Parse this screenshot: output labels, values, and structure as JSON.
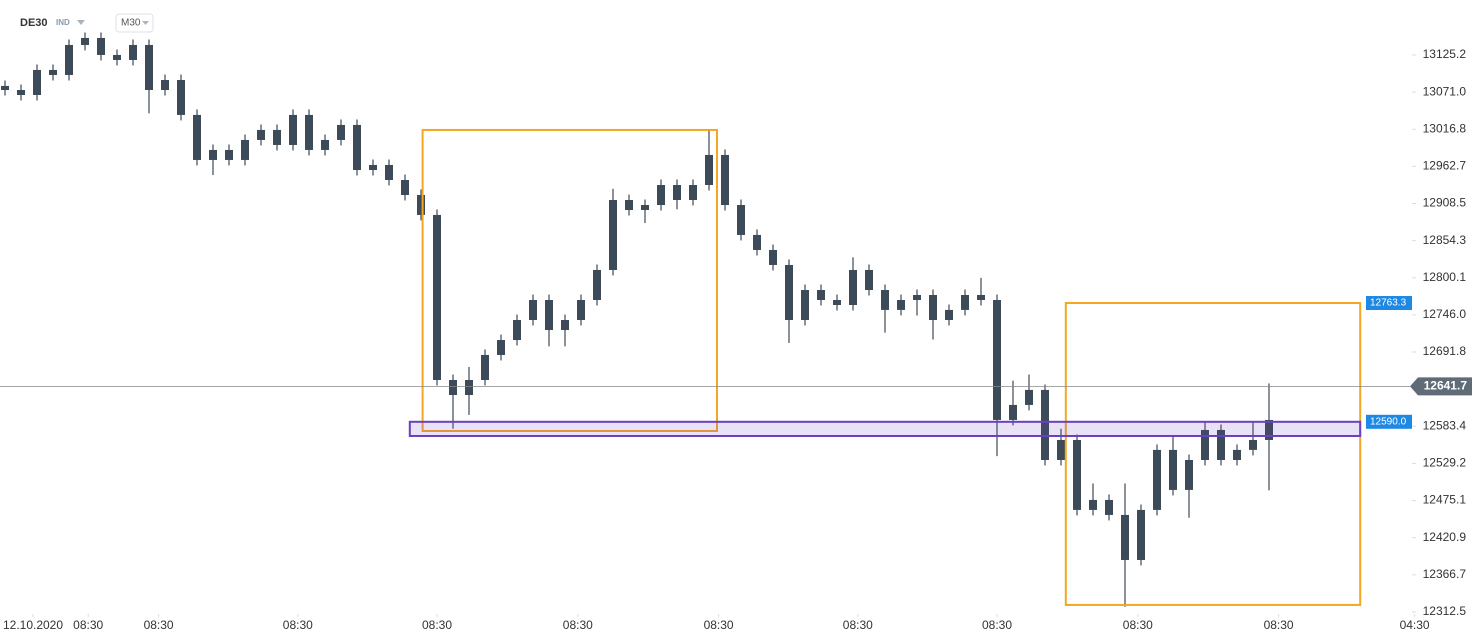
{
  "header": {
    "symbol": "DE30",
    "market": "IND",
    "interval": "M30"
  },
  "chart_data": {
    "type": "candlestick",
    "up_color": "#3d4a57",
    "down_color": "#3d4a57",
    "xlim": [
      -0.3125,
      87.8125
    ],
    "xticks": [
      {
        "value": 1.75,
        "label": "12.10.2020"
      },
      {
        "value": 5.2,
        "label": "08:30"
      },
      {
        "value": 9.6,
        "label": "08:30"
      },
      {
        "value": 18.3,
        "label": "08:30"
      },
      {
        "value": 27,
        "label": "08:30"
      },
      {
        "value": 35.8,
        "label": "08:30"
      },
      {
        "value": 44.6,
        "label": "08:30"
      },
      {
        "value": 53.3,
        "label": "08:30"
      },
      {
        "value": 62,
        "label": "08:30"
      },
      {
        "value": 70.8,
        "label": "08:30"
      },
      {
        "value": 79.6,
        "label": "08:30"
      },
      {
        "value": 88.1,
        "label": "04:30"
      }
    ],
    "ylim": [
      12312.5,
      13205.4
    ],
    "yticks": [
      13125.2,
      {
        "value": 13071.0,
        "label": "13071.0"
      },
      13016.8,
      12962.7,
      12908.5,
      12854.3,
      12800.1,
      {
        "value": 12746.0,
        "label": "12746.0"
      },
      12691.8,
      12583.4,
      12529.2,
      12475.1,
      12420.9,
      12366.7,
      12312.5
    ],
    "open": [
      13080.0,
      13074.1,
      13066.8,
      13103.3,
      13096.0,
      13139.8,
      13150.0,
      13125.2,
      13117.9,
      13139.8,
      13074.1,
      13088.7,
      13037.7,
      12972.0,
      12986.6,
      12972.0,
      13001.2,
      13015.8,
      12993.9,
      13037.7,
      12986.6,
      13001.2,
      13023.1,
      12957.4,
      12964.7,
      12942.8,
      12920.9,
      12891.8,
      12651.0,
      12629.1,
      12651.0,
      12687.5,
      12709.3,
      12738.5,
      12767.7,
      12723.9,
      12738.5,
      12767.7,
      12811.5,
      12913.6,
      12899.0,
      12906.3,
      12935.5,
      12913.6,
      12935.5,
      12979.3,
      12906.3,
      12862.6,
      12840.7,
      12818.8,
      12738.5,
      12782.3,
      12767.7,
      12760.4,
      12811.5,
      12782.3,
      12753.2,
      12767.7,
      12775.0,
      12738.5,
      12753.2,
      12775.0,
      12767.7,
      12592.7,
      12614.6,
      12636.5,
      12534.3,
      12563.5,
      12461.4,
      12476.0,
      12454.1,
      12388.4,
      12461.4,
      12549.0,
      12490.6,
      12534.3,
      12578.1,
      12534.3,
      12549.0,
      12563.5
    ],
    "high": [
      13088.0,
      13082.1,
      13111.3,
      13111.3,
      13147.8,
      13158.0,
      13158.0,
      13133.2,
      13147.8,
      13147.8,
      13096.7,
      13096.7,
      13045.7,
      12994.6,
      12994.6,
      13009.2,
      13023.8,
      13023.8,
      13045.7,
      13045.7,
      13009.2,
      13031.1,
      13031.1,
      12972.7,
      12972.7,
      12950.8,
      12928.9,
      12899.8,
      12659.0,
      12670.0,
      12695.5,
      12717.3,
      12746.5,
      12775.7,
      12775.7,
      12746.5,
      12775.7,
      12819.5,
      12930.0,
      12921.6,
      12914.3,
      12943.5,
      12943.5,
      12943.5,
      13016.0,
      12987.3,
      12914.3,
      12870.6,
      12848.7,
      12826.8,
      12790.3,
      12790.3,
      12775.7,
      12830.0,
      12819.5,
      12790.3,
      12775.7,
      12783.0,
      12783.0,
      12761.2,
      12783.0,
      12800.0,
      12775.7,
      12650.0,
      12659.0,
      12644.5,
      12580.0,
      12571.5,
      12500.0,
      12484.0,
      12500.0,
      12469.4,
      12557.0,
      12570.0,
      12542.3,
      12590.0,
      12586.1,
      12557.0,
      12590.0,
      12646.0
    ],
    "low": [
      13066.1,
      13058.8,
      13058.8,
      13088.0,
      13088.0,
      13131.8,
      13117.2,
      13109.9,
      13109.9,
      13040.0,
      13066.1,
      13029.7,
      12964.0,
      12950.0,
      12964.0,
      12964.0,
      12993.2,
      12985.9,
      12985.9,
      12978.6,
      12978.6,
      12993.2,
      12949.4,
      12949.4,
      12934.8,
      12912.9,
      12883.8,
      12643.0,
      12580.0,
      12600.0,
      12643.0,
      12679.5,
      12701.3,
      12730.5,
      12700.0,
      12700.0,
      12730.5,
      12759.7,
      12803.5,
      12891.0,
      12880.0,
      12898.3,
      12900.0,
      12905.6,
      12927.5,
      12898.3,
      12854.6,
      12832.7,
      12810.8,
      12705.0,
      12730.5,
      12759.7,
      12752.4,
      12752.4,
      12774.3,
      12720.0,
      12745.2,
      12745.0,
      12710.0,
      12730.5,
      12745.2,
      12759.7,
      12540.0,
      12584.7,
      12606.6,
      12526.3,
      12526.3,
      12453.4,
      12453.4,
      12446.1,
      12320.0,
      12380.4,
      12453.4,
      12482.6,
      12450.0,
      12526.3,
      12526.3,
      12526.3,
      12541.0,
      12490.0
    ],
    "close": [
      13074.1,
      13066.8,
      13103.3,
      13096.0,
      13139.8,
      13150.0,
      13125.2,
      13117.9,
      13139.8,
      13074.1,
      13088.7,
      13037.7,
      12972.0,
      12986.6,
      12972.0,
      13001.2,
      13015.8,
      12993.9,
      13037.7,
      12986.6,
      13001.2,
      13023.1,
      12957.4,
      12964.7,
      12942.8,
      12920.9,
      12891.8,
      12651.0,
      12629.1,
      12651.0,
      12687.5,
      12709.3,
      12738.5,
      12767.7,
      12723.9,
      12738.5,
      12767.7,
      12811.5,
      12913.6,
      12899.0,
      12906.3,
      12935.5,
      12913.6,
      12935.5,
      12979.3,
      12906.3,
      12862.6,
      12840.7,
      12818.8,
      12738.5,
      12782.3,
      12767.7,
      12760.4,
      12811.5,
      12782.3,
      12753.2,
      12767.7,
      12775.0,
      12738.5,
      12753.2,
      12775.0,
      12767.7,
      12592.7,
      12614.6,
      12636.5,
      12534.3,
      12563.5,
      12461.4,
      12476.0,
      12454.1,
      12388.4,
      12461.4,
      12549.0,
      12490.6,
      12534.3,
      12578.1,
      12534.3,
      12549.0,
      12563.5,
      12592.7
    ],
    "last_price": 12641.7,
    "zones": [
      {
        "x": [
          26.1,
          44.5
        ],
        "y": [
          12576.6,
          13015.8
        ],
        "color": "#f5a623"
      },
      {
        "x": [
          66.3,
          84.7
        ],
        "y": [
          12322.8,
          12763.3
        ],
        "color": "#f5a623",
        "tag": 12763.3
      }
    ],
    "band": {
      "x": [
        25.3,
        84.7
      ],
      "y": [
        12569.3,
        {
          "value": 12590.0,
          "label": "12590.0"
        }
      ],
      "color": "#6a3fc1"
    }
  }
}
